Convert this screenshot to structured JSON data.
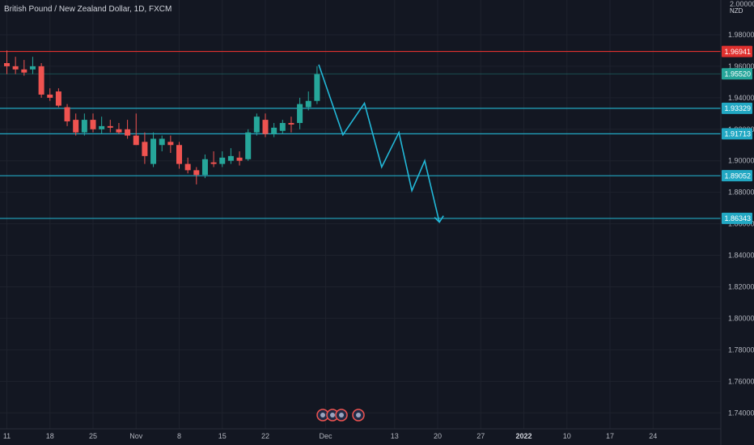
{
  "header": {
    "title": "British Pound / New Zealand Dollar, 1D, FXCM",
    "currency": "NZD",
    "y_axis_top_label": "2.00000"
  },
  "chart_data": {
    "type": "candlestick",
    "title": "British Pound / New Zealand Dollar, 1D, FXCM",
    "ylim": [
      1.735,
      2.0
    ],
    "y_ticks": [
      "1.98000",
      "1.96000",
      "1.94000",
      "1.92000",
      "1.90000",
      "1.88000",
      "1.86000",
      "1.84000",
      "1.82000",
      "1.80000",
      "1.78000",
      "1.76000",
      "1.74000"
    ],
    "x_ticks": [
      {
        "label": "11",
        "index": 0
      },
      {
        "label": "18",
        "index": 5
      },
      {
        "label": "25",
        "index": 10
      },
      {
        "label": "Nov",
        "index": 15
      },
      {
        "label": "8",
        "index": 20
      },
      {
        "label": "15",
        "index": 25
      },
      {
        "label": "22",
        "index": 30
      },
      {
        "label": "Dec",
        "index": 37
      },
      {
        "label": "13",
        "index": 45
      },
      {
        "label": "20",
        "index": 50
      },
      {
        "label": "27",
        "index": 55
      },
      {
        "label": "2022",
        "index": 60,
        "bold": true
      },
      {
        "label": "10",
        "index": 65
      },
      {
        "label": "17",
        "index": 70
      },
      {
        "label": "24",
        "index": 75
      }
    ],
    "candles": [
      {
        "o": 1.962,
        "h": 1.97,
        "l": 1.955,
        "c": 1.96
      },
      {
        "o": 1.96,
        "h": 1.966,
        "l": 1.955,
        "c": 1.958
      },
      {
        "o": 1.958,
        "h": 1.964,
        "l": 1.954,
        "c": 1.956
      },
      {
        "o": 1.958,
        "h": 1.966,
        "l": 1.955,
        "c": 1.96
      },
      {
        "o": 1.96,
        "h": 1.962,
        "l": 1.94,
        "c": 1.942
      },
      {
        "o": 1.942,
        "h": 1.946,
        "l": 1.938,
        "c": 1.94
      },
      {
        "o": 1.944,
        "h": 1.946,
        "l": 1.934,
        "c": 1.935
      },
      {
        "o": 1.934,
        "h": 1.936,
        "l": 1.922,
        "c": 1.925
      },
      {
        "o": 1.926,
        "h": 1.93,
        "l": 1.916,
        "c": 1.918
      },
      {
        "o": 1.918,
        "h": 1.93,
        "l": 1.916,
        "c": 1.926
      },
      {
        "o": 1.926,
        "h": 1.93,
        "l": 1.918,
        "c": 1.92
      },
      {
        "o": 1.92,
        "h": 1.928,
        "l": 1.917,
        "c": 1.922
      },
      {
        "o": 1.922,
        "h": 1.926,
        "l": 1.918,
        "c": 1.921
      },
      {
        "o": 1.92,
        "h": 1.924,
        "l": 1.917,
        "c": 1.918
      },
      {
        "o": 1.92,
        "h": 1.926,
        "l": 1.914,
        "c": 1.916
      },
      {
        "o": 1.916,
        "h": 1.93,
        "l": 1.91,
        "c": 1.91
      },
      {
        "o": 1.912,
        "h": 1.918,
        "l": 1.898,
        "c": 1.903
      },
      {
        "o": 1.898,
        "h": 1.918,
        "l": 1.896,
        "c": 1.914
      },
      {
        "o": 1.91,
        "h": 1.916,
        "l": 1.906,
        "c": 1.914
      },
      {
        "o": 1.912,
        "h": 1.916,
        "l": 1.905,
        "c": 1.91
      },
      {
        "o": 1.91,
        "h": 1.912,
        "l": 1.895,
        "c": 1.898
      },
      {
        "o": 1.898,
        "h": 1.902,
        "l": 1.892,
        "c": 1.894
      },
      {
        "o": 1.894,
        "h": 1.896,
        "l": 1.885,
        "c": 1.891
      },
      {
        "o": 1.891,
        "h": 1.904,
        "l": 1.889,
        "c": 1.901
      },
      {
        "o": 1.899,
        "h": 1.906,
        "l": 1.896,
        "c": 1.898
      },
      {
        "o": 1.898,
        "h": 1.906,
        "l": 1.896,
        "c": 1.902
      },
      {
        "o": 1.9,
        "h": 1.908,
        "l": 1.898,
        "c": 1.903
      },
      {
        "o": 1.902,
        "h": 1.906,
        "l": 1.897,
        "c": 1.9
      },
      {
        "o": 1.901,
        "h": 1.92,
        "l": 1.9,
        "c": 1.918
      },
      {
        "o": 1.918,
        "h": 1.93,
        "l": 1.916,
        "c": 1.928
      },
      {
        "o": 1.926,
        "h": 1.93,
        "l": 1.915,
        "c": 1.917
      },
      {
        "o": 1.917,
        "h": 1.924,
        "l": 1.915,
        "c": 1.921
      },
      {
        "o": 1.919,
        "h": 1.926,
        "l": 1.917,
        "c": 1.924
      },
      {
        "o": 1.924,
        "h": 1.928,
        "l": 1.918,
        "c": 1.923
      },
      {
        "o": 1.924,
        "h": 1.94,
        "l": 1.92,
        "c": 1.936
      },
      {
        "o": 1.934,
        "h": 1.944,
        "l": 1.932,
        "c": 1.938
      },
      {
        "o": 1.938,
        "h": 1.96,
        "l": 1.936,
        "c": 1.955
      }
    ],
    "levels": [
      {
        "value": 1.96941,
        "label": "1.96941",
        "color": "#e0312f"
      },
      {
        "value": 1.9552,
        "label": "1.95520",
        "color": "#26a69a",
        "muted": true
      },
      {
        "value": 1.93329,
        "label": "1.93329",
        "color": "#22a8c3"
      },
      {
        "value": 1.91713,
        "label": "1.91713",
        "color": "#22a8c3"
      },
      {
        "value": 1.89052,
        "label": "1.89052",
        "color": "#22a8c3"
      },
      {
        "value": 1.86343,
        "label": "1.86343",
        "color": "#22a8c3"
      }
    ],
    "projection": [
      {
        "i": 36.2,
        "v": 1.961
      },
      {
        "i": 39.0,
        "v": 1.9165
      },
      {
        "i": 41.5,
        "v": 1.9365
      },
      {
        "i": 43.5,
        "v": 1.896
      },
      {
        "i": 45.5,
        "v": 1.918
      },
      {
        "i": 47.0,
        "v": 1.881
      },
      {
        "i": 48.5,
        "v": 1.9
      },
      {
        "i": 50.2,
        "v": 1.861
      }
    ],
    "colors": {
      "up": "#26a69a",
      "down": "#ef5350",
      "projection": "#22b8d8",
      "background": "#131722",
      "grid": "#1e222d"
    }
  }
}
